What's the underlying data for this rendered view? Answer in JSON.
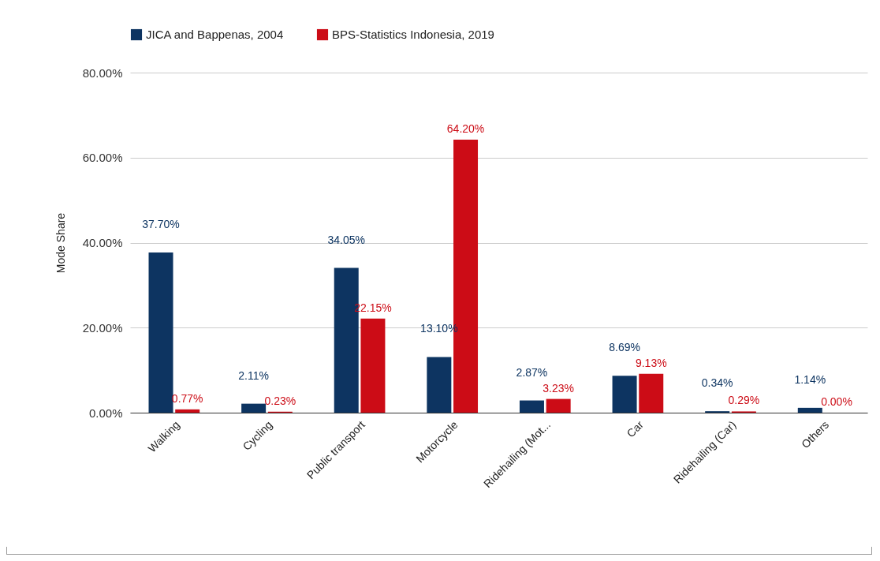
{
  "chart_data": {
    "type": "bar",
    "ylabel": "Mode Share",
    "categories": [
      "Walking",
      "Cycling",
      "Public transport",
      "Motorcycle",
      "Ridehailing (Mot...",
      "Car",
      "Ridehailing (Car)",
      "Others"
    ],
    "series": [
      {
        "name": "JICA and Bappenas, 2004",
        "color": "#0d3461",
        "values": [
          37.7,
          2.11,
          34.05,
          13.1,
          2.87,
          8.69,
          0.34,
          1.14
        ],
        "value_labels": [
          "37.70%",
          "2.11%",
          "34.05%",
          "13.10%",
          "2.87%",
          "8.69%",
          "0.34%",
          "1.14%"
        ]
      },
      {
        "name": "BPS-Statistics Indonesia, 2019",
        "color": "#cc0c16",
        "values": [
          0.77,
          0.23,
          22.15,
          64.2,
          3.23,
          9.13,
          0.29,
          0.0
        ],
        "value_labels": [
          "0.77%",
          "0.23%",
          "22.15%",
          "64.20%",
          "3.23%",
          "9.13%",
          "0.29%",
          "0.00%"
        ]
      }
    ],
    "ylim": [
      0,
      80
    ],
    "yticks": [
      {
        "value": 0,
        "label": "0.00%"
      },
      {
        "value": 20,
        "label": "20.00%"
      },
      {
        "value": 40,
        "label": "40.00%"
      },
      {
        "value": 60,
        "label": "60.00%"
      },
      {
        "value": 80,
        "label": "80.00%"
      }
    ],
    "grid": "y",
    "legend": "top"
  }
}
